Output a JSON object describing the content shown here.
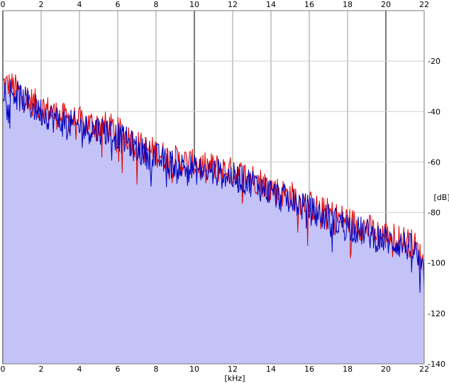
{
  "chart_data": {
    "type": "area",
    "title": "",
    "xlabel": "[kHz]",
    "ylabel": "[dB]",
    "xlim": [
      0,
      22
    ],
    "ylim": [
      -140,
      0
    ],
    "x_ticks": [
      "0",
      "2",
      "4",
      "6",
      "8",
      "10",
      "12",
      "14",
      "16",
      "18",
      "20",
      "22"
    ],
    "y_ticks": [
      "-20",
      "-40",
      "-60",
      "-80",
      "-100",
      "-120",
      "-140"
    ],
    "grid": true,
    "legend": "none",
    "colors": {
      "fill": "#c3c3f7",
      "series_red": "#e00000",
      "series_blue": "#0000c0",
      "grid_major": "#9a9a9a",
      "grid_minor": "#cfcfcf"
    },
    "series": [
      {
        "color": "red",
        "x": [
          0,
          0.5,
          1,
          1.5,
          2,
          2.5,
          3,
          3.5,
          4,
          4.5,
          5,
          5.5,
          6,
          6.5,
          7,
          7.5,
          8,
          8.5,
          9,
          9.5,
          10,
          10.5,
          11,
          11.5,
          12,
          12.5,
          13,
          13.5,
          14,
          14.5,
          15,
          15.5,
          16,
          16.5,
          17,
          17.5,
          18,
          18.5,
          19,
          19.5,
          20,
          20.5,
          21,
          21.5,
          22
        ],
        "values": [
          -29,
          -30,
          -33,
          -36,
          -38,
          -40,
          -42,
          -43,
          -44,
          -45,
          -45,
          -46,
          -48,
          -50,
          -53,
          -55,
          -56,
          -58,
          -59,
          -60,
          -61,
          -62,
          -62,
          -63,
          -64,
          -65,
          -66,
          -68,
          -70,
          -72,
          -73,
          -75,
          -77,
          -79,
          -80,
          -82,
          -83,
          -85,
          -86,
          -88,
          -89,
          -90,
          -91,
          -93,
          -101
        ]
      },
      {
        "color": "blue",
        "x": [
          0,
          0.5,
          1,
          1.5,
          2,
          2.5,
          3,
          3.5,
          4,
          4.5,
          5,
          5.5,
          6,
          6.5,
          7,
          7.5,
          8,
          8.5,
          9,
          9.5,
          10,
          10.5,
          11,
          11.5,
          12,
          12.5,
          13,
          13.5,
          14,
          14.5,
          15,
          15.5,
          16,
          16.5,
          17,
          17.5,
          18,
          18.5,
          19,
          19.5,
          20,
          20.5,
          21,
          21.5,
          22
        ],
        "values": [
          -31,
          -32,
          -35,
          -38,
          -40,
          -42,
          -44,
          -45,
          -46,
          -47,
          -47,
          -48,
          -50,
          -52,
          -55,
          -57,
          -58,
          -60,
          -61,
          -62,
          -63,
          -64,
          -64,
          -65,
          -66,
          -67,
          -68,
          -70,
          -72,
          -74,
          -75,
          -77,
          -79,
          -81,
          -82,
          -84,
          -85,
          -87,
          -88,
          -90,
          -91,
          -92,
          -93,
          -95,
          -106
        ]
      }
    ]
  }
}
